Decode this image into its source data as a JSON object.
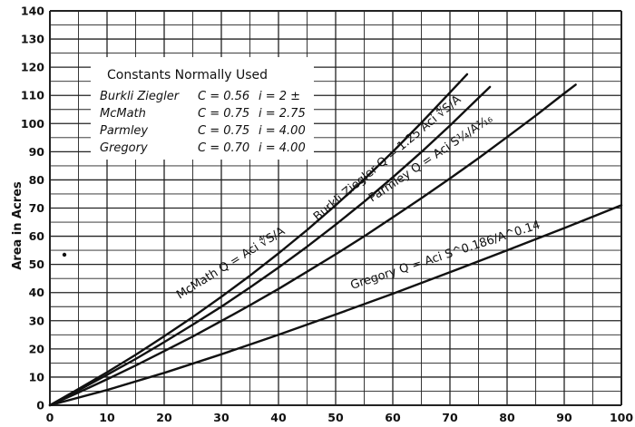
{
  "chart_data": {
    "type": "line",
    "title": "",
    "xlabel": "",
    "ylabel": "Area in Acres",
    "xlim": [
      0,
      100
    ],
    "ylim": [
      0,
      140
    ],
    "x_ticks": [
      "0",
      "10",
      "20",
      "30",
      "40",
      "50",
      "60",
      "70",
      "80",
      "90",
      "100"
    ],
    "y_ticks": [
      "0",
      "10",
      "20",
      "30",
      "40",
      "50",
      "60",
      "70",
      "80",
      "90",
      "100",
      "110",
      "120",
      "130",
      "140"
    ],
    "grid": true,
    "legend_box": {
      "title": "Constants Normally Used",
      "rows": [
        {
          "name": "Burkli Ziegler",
          "c": "C = 0.56",
          "i": "i = 2 ±"
        },
        {
          "name": "McMath",
          "c": "C = 0.75",
          "i": "i = 2.75"
        },
        {
          "name": "Parmley",
          "c": "C = 0.75",
          "i": "i = 4.00"
        },
        {
          "name": "Gregory",
          "c": "C = 0.70",
          "i": "i = 4.00"
        }
      ]
    },
    "series": [
      {
        "name": "McMath",
        "label": "McMath  Q = Aci ∜S/A",
        "x": [
          0,
          5,
          10,
          15,
          20,
          25,
          30,
          35,
          40,
          45,
          50,
          55,
          60,
          65,
          70,
          73
        ],
        "y": [
          0,
          5.8,
          11.7,
          17.9,
          24.5,
          31.3,
          38.5,
          46.0,
          53.9,
          62.2,
          71.0,
          80.2,
          90.0,
          100.3,
          111.0,
          117.5
        ]
      },
      {
        "name": "Burkli Ziegler",
        "label": "Burkli Ziegler  Q = 1.25 Aci ∜S/A",
        "x": [
          0,
          5,
          10,
          15,
          20,
          25,
          30,
          35,
          40,
          45,
          50,
          55,
          60,
          65,
          70,
          75,
          77
        ],
        "y": [
          0,
          5.3,
          10.8,
          16.4,
          22.4,
          28.6,
          35.0,
          41.8,
          48.9,
          56.3,
          64.1,
          72.3,
          80.9,
          89.9,
          99.3,
          109.1,
          113.0
        ]
      },
      {
        "name": "Parmley",
        "label": "Parmley  Q = Aci S¼/A¹⁄₁₆",
        "x": [
          0,
          5,
          10,
          15,
          20,
          25,
          30,
          35,
          40,
          45,
          50,
          55,
          60,
          65,
          70,
          75,
          80,
          85,
          90,
          92
        ],
        "y": [
          0,
          4.5,
          9.2,
          14.1,
          19.2,
          24.4,
          29.9,
          35.5,
          41.3,
          47.4,
          53.6,
          60.0,
          66.7,
          73.5,
          80.5,
          87.7,
          95.2,
          102.8,
          110.7,
          113.8
        ]
      },
      {
        "name": "Gregory",
        "label": "Gregory  Q = Aci S^0.186/A^0.14",
        "x": [
          0,
          10,
          20,
          30,
          40,
          50,
          60,
          70,
          80,
          90,
          100
        ],
        "y": [
          0,
          5.4,
          11.5,
          18.1,
          25.0,
          32.2,
          39.6,
          47.2,
          55.0,
          62.9,
          71.0
        ]
      }
    ]
  }
}
